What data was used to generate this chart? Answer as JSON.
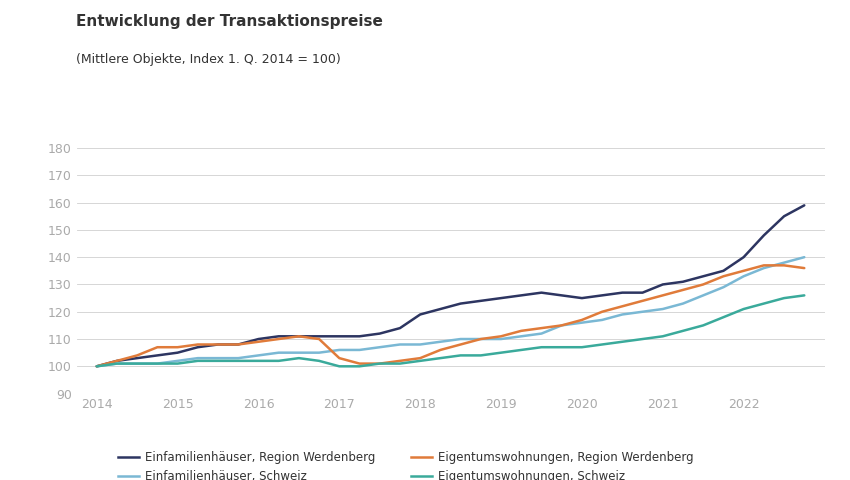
{
  "title": "Entwicklung der Transaktionspreise",
  "subtitle": "(Mittlere Objekte, Index 1. Q. 2014 = 100)",
  "ylim": [
    90,
    185
  ],
  "yticks": [
    90,
    100,
    110,
    120,
    130,
    140,
    150,
    160,
    170,
    180
  ],
  "background_color": "#ffffff",
  "plot_bg_color": "#ffffff",
  "series": {
    "einfam_werdenberg": {
      "label": "Einfamilienhäuser, Region Werdenberg",
      "color": "#2d3561",
      "linewidth": 1.8,
      "data": {
        "x": [
          2014.0,
          2014.25,
          2014.5,
          2014.75,
          2015.0,
          2015.25,
          2015.5,
          2015.75,
          2016.0,
          2016.25,
          2016.5,
          2016.75,
          2017.0,
          2017.25,
          2017.5,
          2017.75,
          2018.0,
          2018.25,
          2018.5,
          2018.75,
          2019.0,
          2019.25,
          2019.5,
          2019.75,
          2020.0,
          2020.25,
          2020.5,
          2020.75,
          2021.0,
          2021.25,
          2021.5,
          2021.75,
          2022.0,
          2022.25,
          2022.5,
          2022.75
        ],
        "y": [
          100,
          102,
          103,
          104,
          105,
          107,
          108,
          108,
          110,
          111,
          111,
          111,
          111,
          111,
          112,
          114,
          119,
          121,
          123,
          124,
          125,
          126,
          127,
          126,
          125,
          126,
          127,
          127,
          130,
          131,
          133,
          135,
          140,
          148,
          155,
          159
        ]
      }
    },
    "einfam_schweiz": {
      "label": "Einfamilienhäuser, Schweiz",
      "color": "#7ab8d4",
      "linewidth": 1.8,
      "data": {
        "x": [
          2014.0,
          2014.25,
          2014.5,
          2014.75,
          2015.0,
          2015.25,
          2015.5,
          2015.75,
          2016.0,
          2016.25,
          2016.5,
          2016.75,
          2017.0,
          2017.25,
          2017.5,
          2017.75,
          2018.0,
          2018.25,
          2018.5,
          2018.75,
          2019.0,
          2019.25,
          2019.5,
          2019.75,
          2020.0,
          2020.25,
          2020.5,
          2020.75,
          2021.0,
          2021.25,
          2021.5,
          2021.75,
          2022.0,
          2022.25,
          2022.5,
          2022.75
        ],
        "y": [
          100,
          101,
          101,
          101,
          102,
          103,
          103,
          103,
          104,
          105,
          105,
          105,
          106,
          106,
          107,
          108,
          108,
          109,
          110,
          110,
          110,
          111,
          112,
          115,
          116,
          117,
          119,
          120,
          121,
          123,
          126,
          129,
          133,
          136,
          138,
          140
        ]
      }
    },
    "eigentum_werdenberg": {
      "label": "Eigentumswohnungen, Region Werdenberg",
      "color": "#e07b3a",
      "linewidth": 1.8,
      "data": {
        "x": [
          2014.0,
          2014.25,
          2014.5,
          2014.75,
          2015.0,
          2015.25,
          2015.5,
          2015.75,
          2016.0,
          2016.25,
          2016.5,
          2016.75,
          2017.0,
          2017.25,
          2017.5,
          2017.75,
          2018.0,
          2018.25,
          2018.5,
          2018.75,
          2019.0,
          2019.25,
          2019.5,
          2019.75,
          2020.0,
          2020.25,
          2020.5,
          2020.75,
          2021.0,
          2021.25,
          2021.5,
          2021.75,
          2022.0,
          2022.25,
          2022.5,
          2022.75
        ],
        "y": [
          100,
          102,
          104,
          107,
          107,
          108,
          108,
          108,
          109,
          110,
          111,
          110,
          103,
          101,
          101,
          102,
          103,
          106,
          108,
          110,
          111,
          113,
          114,
          115,
          117,
          120,
          122,
          124,
          126,
          128,
          130,
          133,
          135,
          137,
          137,
          136
        ]
      }
    },
    "eigentum_schweiz": {
      "label": "Eigentumswohnungen, Schweiz",
      "color": "#3aaa9b",
      "linewidth": 1.8,
      "data": {
        "x": [
          2014.0,
          2014.25,
          2014.5,
          2014.75,
          2015.0,
          2015.25,
          2015.5,
          2015.75,
          2016.0,
          2016.25,
          2016.5,
          2016.75,
          2017.0,
          2017.25,
          2017.5,
          2017.75,
          2018.0,
          2018.25,
          2018.5,
          2018.75,
          2019.0,
          2019.25,
          2019.5,
          2019.75,
          2020.0,
          2020.25,
          2020.5,
          2020.75,
          2021.0,
          2021.25,
          2021.5,
          2021.75,
          2022.0,
          2022.25,
          2022.5,
          2022.75
        ],
        "y": [
          100,
          101,
          101,
          101,
          101,
          102,
          102,
          102,
          102,
          102,
          103,
          102,
          100,
          100,
          101,
          101,
          102,
          103,
          104,
          104,
          105,
          106,
          107,
          107,
          107,
          108,
          109,
          110,
          111,
          113,
          115,
          118,
          121,
          123,
          125,
          126
        ]
      }
    }
  },
  "xtick_positions": [
    2014,
    2015,
    2016,
    2017,
    2018,
    2019,
    2020,
    2021,
    2022
  ],
  "xtick_labels": [
    "2014",
    "2015",
    "2016",
    "2017",
    "2018",
    "2019",
    "2020",
    "2021",
    "2022"
  ],
  "grid_color": "#d0d0d0",
  "title_color": "#333333",
  "tick_color": "#aaaaaa",
  "legend_order": [
    "einfam_werdenberg",
    "einfam_schweiz",
    "eigentum_werdenberg",
    "eigentum_schweiz"
  ]
}
